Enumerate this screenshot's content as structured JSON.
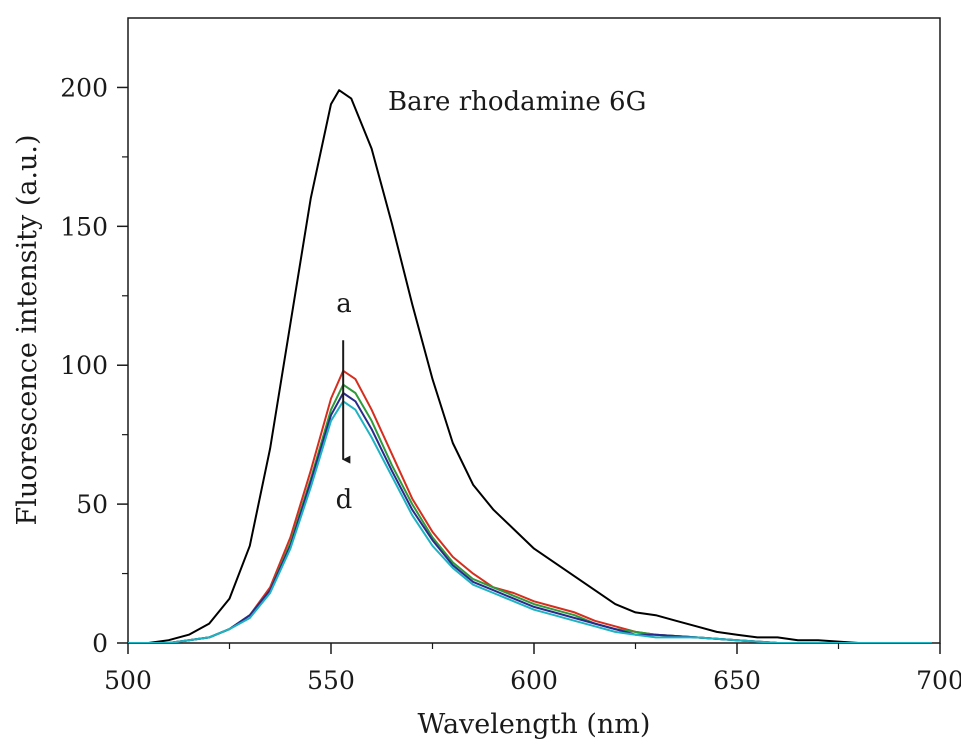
{
  "chart_data": {
    "type": "line",
    "xlabel": "Wavelength (nm)",
    "ylabel": "Fluorescence intensity (a.u.)",
    "xlim": [
      500,
      700
    ],
    "ylim": [
      0,
      225
    ],
    "x_ticks": [
      500,
      550,
      600,
      650,
      700
    ],
    "x_tick_labels": [
      "500",
      "550",
      "600",
      "650",
      "700"
    ],
    "y_ticks": [
      0,
      50,
      100,
      150,
      200
    ],
    "y_tick_labels": [
      "0",
      "50",
      "100",
      "150",
      "200"
    ],
    "grid": false,
    "annotations": {
      "bare_label": "Bare rhodamine 6G",
      "top_label": "a",
      "bottom_label": "d",
      "arrow": {
        "x": 553,
        "y_from": 109,
        "y_to": 66
      }
    },
    "series": [
      {
        "color": "#000000",
        "points": [
          [
            500,
            0
          ],
          [
            505,
            0
          ],
          [
            510,
            1
          ],
          [
            515,
            3
          ],
          [
            520,
            7
          ],
          [
            525,
            16
          ],
          [
            530,
            35
          ],
          [
            535,
            70
          ],
          [
            540,
            115
          ],
          [
            545,
            160
          ],
          [
            550,
            194
          ],
          [
            552,
            199
          ],
          [
            555,
            196
          ],
          [
            560,
            178
          ],
          [
            565,
            151
          ],
          [
            570,
            122
          ],
          [
            575,
            95
          ],
          [
            580,
            72
          ],
          [
            585,
            57
          ],
          [
            590,
            48
          ],
          [
            595,
            41
          ],
          [
            600,
            34
          ],
          [
            605,
            29
          ],
          [
            610,
            24
          ],
          [
            615,
            19
          ],
          [
            620,
            14
          ],
          [
            625,
            11
          ],
          [
            630,
            10
          ],
          [
            635,
            8
          ],
          [
            640,
            6
          ],
          [
            645,
            4
          ],
          [
            650,
            3
          ],
          [
            655,
            2
          ],
          [
            660,
            2
          ],
          [
            665,
            1
          ],
          [
            670,
            1
          ],
          [
            680,
            0
          ],
          [
            690,
            0
          ],
          [
            698,
            0
          ]
        ]
      },
      {
        "color": "#d62e1e",
        "points": [
          [
            500,
            0
          ],
          [
            505,
            0
          ],
          [
            510,
            0
          ],
          [
            515,
            1
          ],
          [
            520,
            2
          ],
          [
            525,
            5
          ],
          [
            530,
            10
          ],
          [
            535,
            20
          ],
          [
            540,
            38
          ],
          [
            545,
            62
          ],
          [
            550,
            88
          ],
          [
            553,
            98
          ],
          [
            556,
            95
          ],
          [
            560,
            84
          ],
          [
            565,
            68
          ],
          [
            570,
            52
          ],
          [
            575,
            40
          ],
          [
            580,
            31
          ],
          [
            585,
            25
          ],
          [
            590,
            20
          ],
          [
            595,
            18
          ],
          [
            600,
            15
          ],
          [
            605,
            13
          ],
          [
            610,
            11
          ],
          [
            615,
            8
          ],
          [
            620,
            6
          ],
          [
            625,
            4
          ],
          [
            630,
            3
          ],
          [
            640,
            2
          ],
          [
            650,
            1
          ],
          [
            660,
            0
          ],
          [
            680,
            0
          ],
          [
            698,
            0
          ]
        ]
      },
      {
        "color": "#2f9a3a",
        "points": [
          [
            500,
            0
          ],
          [
            505,
            0
          ],
          [
            510,
            0
          ],
          [
            515,
            1
          ],
          [
            520,
            2
          ],
          [
            525,
            5
          ],
          [
            530,
            10
          ],
          [
            535,
            19
          ],
          [
            540,
            36
          ],
          [
            545,
            59
          ],
          [
            550,
            84
          ],
          [
            553,
            93
          ],
          [
            556,
            90
          ],
          [
            560,
            80
          ],
          [
            565,
            64
          ],
          [
            570,
            50
          ],
          [
            575,
            38
          ],
          [
            580,
            29
          ],
          [
            585,
            23
          ],
          [
            590,
            20
          ],
          [
            595,
            17
          ],
          [
            600,
            14
          ],
          [
            605,
            12
          ],
          [
            610,
            10
          ],
          [
            615,
            7
          ],
          [
            620,
            5
          ],
          [
            625,
            4
          ],
          [
            630,
            3
          ],
          [
            640,
            2
          ],
          [
            650,
            1
          ],
          [
            660,
            0
          ],
          [
            680,
            0
          ],
          [
            698,
            0
          ]
        ]
      },
      {
        "color": "#2a2a8c",
        "points": [
          [
            500,
            0
          ],
          [
            505,
            0
          ],
          [
            510,
            0
          ],
          [
            515,
            1
          ],
          [
            520,
            2
          ],
          [
            525,
            5
          ],
          [
            530,
            10
          ],
          [
            535,
            19
          ],
          [
            540,
            35
          ],
          [
            545,
            58
          ],
          [
            550,
            82
          ],
          [
            553,
            90
          ],
          [
            556,
            87
          ],
          [
            560,
            77
          ],
          [
            565,
            62
          ],
          [
            570,
            48
          ],
          [
            575,
            37
          ],
          [
            580,
            28
          ],
          [
            585,
            22
          ],
          [
            590,
            19
          ],
          [
            595,
            16
          ],
          [
            600,
            13
          ],
          [
            605,
            11
          ],
          [
            610,
            9
          ],
          [
            615,
            7
          ],
          [
            620,
            5
          ],
          [
            625,
            3
          ],
          [
            630,
            3
          ],
          [
            640,
            2
          ],
          [
            650,
            1
          ],
          [
            660,
            0
          ],
          [
            680,
            0
          ],
          [
            698,
            0
          ]
        ]
      },
      {
        "color": "#1fb3c2",
        "points": [
          [
            500,
            0
          ],
          [
            505,
            0
          ],
          [
            510,
            0
          ],
          [
            515,
            1
          ],
          [
            520,
            2
          ],
          [
            525,
            5
          ],
          [
            530,
            9
          ],
          [
            535,
            18
          ],
          [
            540,
            34
          ],
          [
            545,
            56
          ],
          [
            550,
            80
          ],
          [
            553,
            87
          ],
          [
            556,
            84
          ],
          [
            560,
            74
          ],
          [
            565,
            60
          ],
          [
            570,
            46
          ],
          [
            575,
            35
          ],
          [
            580,
            27
          ],
          [
            585,
            21
          ],
          [
            590,
            18
          ],
          [
            595,
            15
          ],
          [
            600,
            12
          ],
          [
            605,
            10
          ],
          [
            610,
            8
          ],
          [
            615,
            6
          ],
          [
            620,
            4
          ],
          [
            625,
            3
          ],
          [
            630,
            2
          ],
          [
            640,
            2
          ],
          [
            650,
            1
          ],
          [
            660,
            0
          ],
          [
            680,
            0
          ],
          [
            698,
            0
          ]
        ]
      }
    ]
  }
}
